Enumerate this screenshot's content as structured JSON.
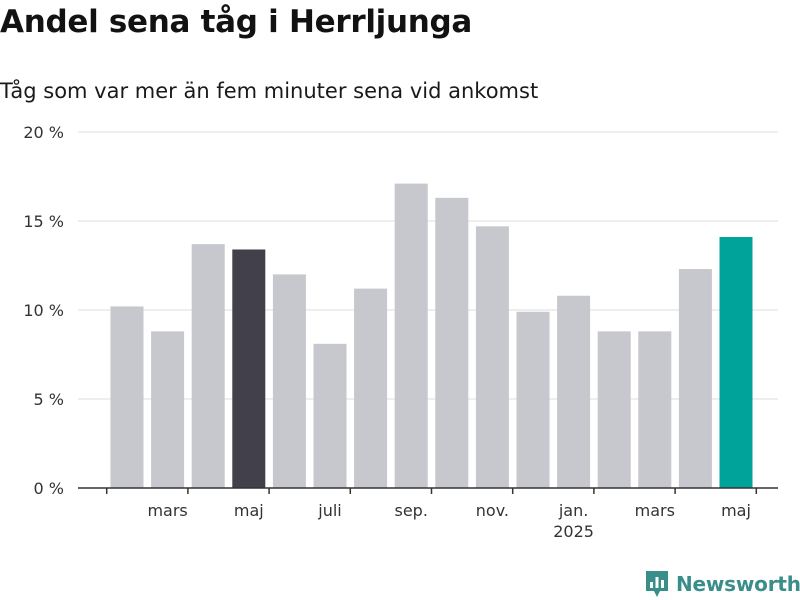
{
  "chart_data": {
    "type": "bar",
    "title": "Andel sena tåg i Herrljunga",
    "subtitle": "Tåg som var mer än fem minuter sena vid ankomst",
    "xlabel": "",
    "ylabel": "",
    "categories": [
      "",
      "mars",
      "",
      "maj",
      "",
      "juli",
      "",
      "sep.",
      "",
      "nov.",
      "",
      "jan.",
      "",
      "mars",
      "",
      "maj"
    ],
    "values": [
      10.2,
      8.8,
      13.7,
      13.4,
      12.0,
      8.1,
      11.2,
      17.1,
      16.3,
      14.7,
      9.9,
      10.8,
      8.8,
      8.8,
      12.3,
      14.1
    ],
    "highlight": {
      "3": "#41404b",
      "15": "#00a39a"
    },
    "default_color": "#c7c7ce",
    "ylim": [
      0,
      20
    ],
    "yticks": [
      {
        "value": 0,
        "label": "0 %"
      },
      {
        "value": 5,
        "label": "5 %"
      },
      {
        "value": 10,
        "label": "10 %"
      },
      {
        "value": 15,
        "label": "15 %"
      },
      {
        "value": 20,
        "label": "20 %"
      }
    ],
    "xticks": [
      {
        "index": 1,
        "label": "mars",
        "sublabel": ""
      },
      {
        "index": 3,
        "label": "maj",
        "sublabel": ""
      },
      {
        "index": 5,
        "label": "juli",
        "sublabel": ""
      },
      {
        "index": 7,
        "label": "sep.",
        "sublabel": ""
      },
      {
        "index": 9,
        "label": "nov.",
        "sublabel": ""
      },
      {
        "index": 11,
        "label": "jan.",
        "sublabel": "2025"
      },
      {
        "index": 13,
        "label": "mars",
        "sublabel": ""
      },
      {
        "index": 15,
        "label": "maj",
        "sublabel": ""
      }
    ],
    "grid": true,
    "legend": "none"
  },
  "brand": {
    "name": "Newsworthy",
    "color": "#3a8e8a",
    "icon": "newsworthy-logo-icon"
  }
}
